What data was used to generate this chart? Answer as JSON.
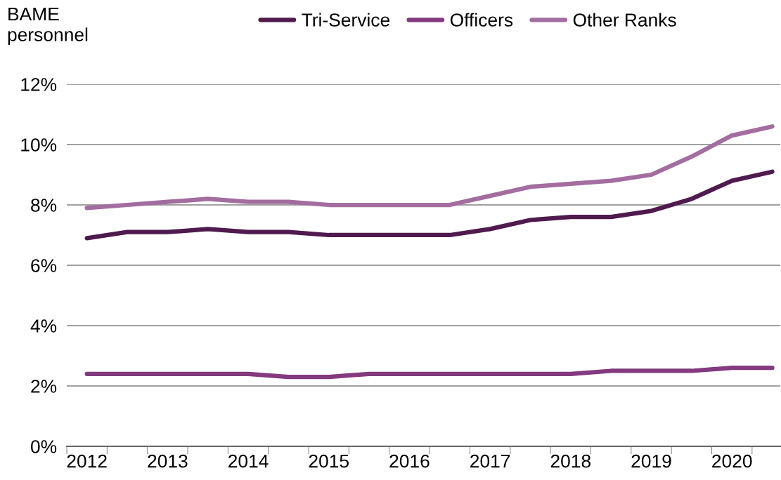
{
  "chart_data": {
    "type": "line",
    "ylabel": "BAME personnel",
    "categories": [
      "2012",
      null,
      "2013",
      null,
      "2014",
      null,
      "2015",
      null,
      "2016",
      null,
      "2017",
      null,
      "2018",
      null,
      "2019",
      null,
      "2020",
      null
    ],
    "series": [
      {
        "name": "Tri-Service",
        "color": "#4f1a4d",
        "values": [
          6.9,
          7.1,
          7.1,
          7.2,
          7.1,
          7.1,
          7.0,
          7.0,
          7.0,
          7.0,
          7.2,
          7.5,
          7.6,
          7.6,
          7.8,
          8.2,
          8.8,
          9.1
        ]
      },
      {
        "name": "Officers",
        "color": "#833a7e",
        "values": [
          2.4,
          2.4,
          2.4,
          2.4,
          2.4,
          2.3,
          2.3,
          2.4,
          2.4,
          2.4,
          2.4,
          2.4,
          2.4,
          2.5,
          2.5,
          2.5,
          2.6,
          2.6
        ]
      },
      {
        "name": "Other Ranks",
        "color": "#a36da0",
        "values": [
          7.9,
          8.0,
          8.1,
          8.2,
          8.1,
          8.1,
          8.0,
          8.0,
          8.0,
          8.0,
          8.3,
          8.6,
          8.7,
          8.8,
          9.0,
          9.6,
          10.3,
          10.6
        ]
      }
    ],
    "ylim": [
      0,
      12
    ],
    "yticks": [
      {
        "value": 0,
        "label": "0%"
      },
      {
        "value": 2,
        "label": "2%"
      },
      {
        "value": 4,
        "label": "4%"
      },
      {
        "value": 6,
        "label": "6%"
      },
      {
        "value": 8,
        "label": "8%"
      },
      {
        "value": 10,
        "label": "10%"
      },
      {
        "value": 12,
        "label": "12%"
      }
    ],
    "grid": "y",
    "legend": "top",
    "marker": "none",
    "line_style": "solid"
  }
}
